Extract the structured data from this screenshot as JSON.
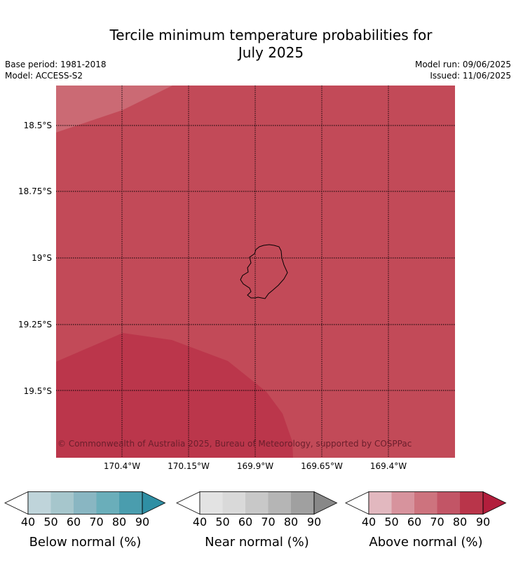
{
  "title": {
    "line1": "Tercile minimum temperature probabilities for",
    "line2": "July 2025"
  },
  "meta": {
    "base_period": "Base period: 1981-2018",
    "model": "Model: ACCESS-S2",
    "model_run": "Model run: 09/06/2025",
    "issued": "Issued: 11/06/2025"
  },
  "map": {
    "copyright": "© Commonwealth of Australia 2025, Bureau of Meteorology, supported by COSPPac",
    "lat_labels": [
      "18.5°S",
      "18.75°S",
      "19°S",
      "19.25°S",
      "19.5°S"
    ],
    "lon_labels": [
      "170.4°W",
      "170.15°W",
      "169.9°W",
      "169.65°W",
      "169.4°W"
    ],
    "fill_colors": {
      "70_80": "#c24a58",
      "60_70": "#cb6a74",
      "80_90": "#bb364b"
    }
  },
  "colorbars": [
    {
      "label": "Below normal (%)",
      "ticks": [
        "40",
        "50",
        "60",
        "70",
        "80",
        "90"
      ],
      "colors": [
        "#ffffff",
        "#bfd4da",
        "#a6c6cc",
        "#89b6c2",
        "#6aaeba",
        "#4a9dae",
        "#2f8fa4"
      ]
    },
    {
      "label": "Near normal (%)",
      "ticks": [
        "40",
        "50",
        "60",
        "70",
        "80",
        "90"
      ],
      "colors": [
        "#ffffff",
        "#e3e3e3",
        "#d9d9d9",
        "#c8c8c8",
        "#b5b5b5",
        "#a0a0a0",
        "#888888"
      ]
    },
    {
      "label": "Above normal (%)",
      "ticks": [
        "40",
        "50",
        "60",
        "70",
        "80",
        "90"
      ],
      "colors": [
        "#ffffff",
        "#e2b8bf",
        "#d7939d",
        "#cd737e",
        "#c25566",
        "#b9354a",
        "#b21e3c"
      ]
    }
  ]
}
